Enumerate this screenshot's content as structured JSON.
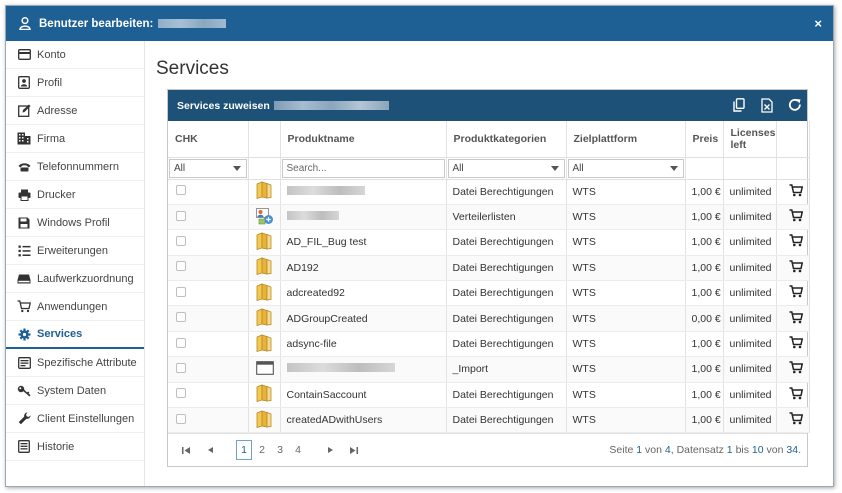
{
  "dialog": {
    "title": "Benutzer bearbeiten:",
    "close_symbol": "×",
    "accent": "#1e5f94"
  },
  "sidebar": {
    "items": [
      {
        "label": "Konto",
        "icon": "card-icon"
      },
      {
        "label": "Profil",
        "icon": "profile-icon"
      },
      {
        "label": "Adresse",
        "icon": "edit-icon"
      },
      {
        "label": "Firma",
        "icon": "building-icon"
      },
      {
        "label": "Telefonnummern",
        "icon": "phone-icon"
      },
      {
        "label": "Drucker",
        "icon": "printer-icon"
      },
      {
        "label": "Windows Profil",
        "icon": "save-icon"
      },
      {
        "label": "Erweiterungen",
        "icon": "list-icon"
      },
      {
        "label": "Laufwerkzuordnung",
        "icon": "drive-icon"
      },
      {
        "label": "Anwendungen",
        "icon": "cart-icon"
      },
      {
        "label": "Services",
        "icon": "gear-icon",
        "active": true
      },
      {
        "label": "Spezifische Attribute",
        "icon": "attributes-icon"
      },
      {
        "label": "System Daten",
        "icon": "key-icon"
      },
      {
        "label": "Client Einstellungen",
        "icon": "wrench-icon"
      },
      {
        "label": "Historie",
        "icon": "history-icon"
      }
    ]
  },
  "main": {
    "page_title": "Services",
    "panel_title": "Services zuweisen",
    "toolbar": {
      "copy_icon": "copy-icon",
      "excel_icon": "excel-icon",
      "refresh_icon": "refresh-icon"
    },
    "columns": {
      "chk": "CHK",
      "produktname": "Produktname",
      "produktkategorien": "Produktkategorien",
      "zielplattform": "Zielplattform",
      "preis": "Preis",
      "licenses": "Licenses left"
    },
    "filters": {
      "chk": "All",
      "search_placeholder": "Search...",
      "kategorien": "All",
      "plattform": "All"
    },
    "rows": [
      {
        "icon": "folder-icon",
        "name": "",
        "name_redacted": true,
        "redact_w": 78,
        "category": "Datei Berechtigungen",
        "platform": "WTS",
        "price": "1,00 €",
        "licenses": "unlimited"
      },
      {
        "icon": "mail-group-icon",
        "name": "",
        "name_redacted": true,
        "redact_w": 52,
        "category": "Verteilerlisten",
        "platform": "WTS",
        "price": "1,00 €",
        "licenses": "unlimited"
      },
      {
        "icon": "folder-icon",
        "name": "AD_FIL_Bug test",
        "category": "Datei Berechtigungen",
        "platform": "WTS",
        "price": "1,00 €",
        "licenses": "unlimited"
      },
      {
        "icon": "folder-icon",
        "name": "AD192",
        "category": "Datei Berechtigungen",
        "platform": "WTS",
        "price": "1,00 €",
        "licenses": "unlimited"
      },
      {
        "icon": "folder-icon",
        "name": "adcreated92",
        "category": "Datei Berechtigungen",
        "platform": "WTS",
        "price": "1,00 €",
        "licenses": "unlimited"
      },
      {
        "icon": "folder-icon",
        "name": "ADGroupCreated",
        "category": "Datei Berechtigungen",
        "platform": "WTS",
        "price": "0,00 €",
        "licenses": "unlimited"
      },
      {
        "icon": "folder-icon",
        "name": "adsync-file",
        "category": "Datei Berechtigungen",
        "platform": "WTS",
        "price": "1,00 €",
        "licenses": "unlimited"
      },
      {
        "icon": "window-icon",
        "name": "",
        "name_redacted": true,
        "redact_w": 108,
        "category": "_Import",
        "platform": "WTS",
        "price": "1,00 €",
        "licenses": "unlimited"
      },
      {
        "icon": "folder-icon",
        "name": "ContainSaccount",
        "category": "Datei Berechtigungen",
        "platform": "WTS",
        "price": "1,00 €",
        "licenses": "unlimited"
      },
      {
        "icon": "folder-icon",
        "name": "createdADwithUsers",
        "category": "Datei Berechtigungen",
        "platform": "WTS",
        "price": "1,00 €",
        "licenses": "unlimited"
      }
    ],
    "pager": {
      "first": "⏮",
      "prev": "◀",
      "pages": [
        "1",
        "2",
        "3",
        "4"
      ],
      "current_page": 1,
      "next": "▶",
      "last": "⏭",
      "info_prefix": "Seite",
      "page": "1",
      "von1": "von",
      "total_pages": "4",
      "datensatz": ", Datensatz",
      "from": "1",
      "bis": "bis",
      "to": "10",
      "von2": "von",
      "total": "34",
      "suffix": "."
    }
  }
}
